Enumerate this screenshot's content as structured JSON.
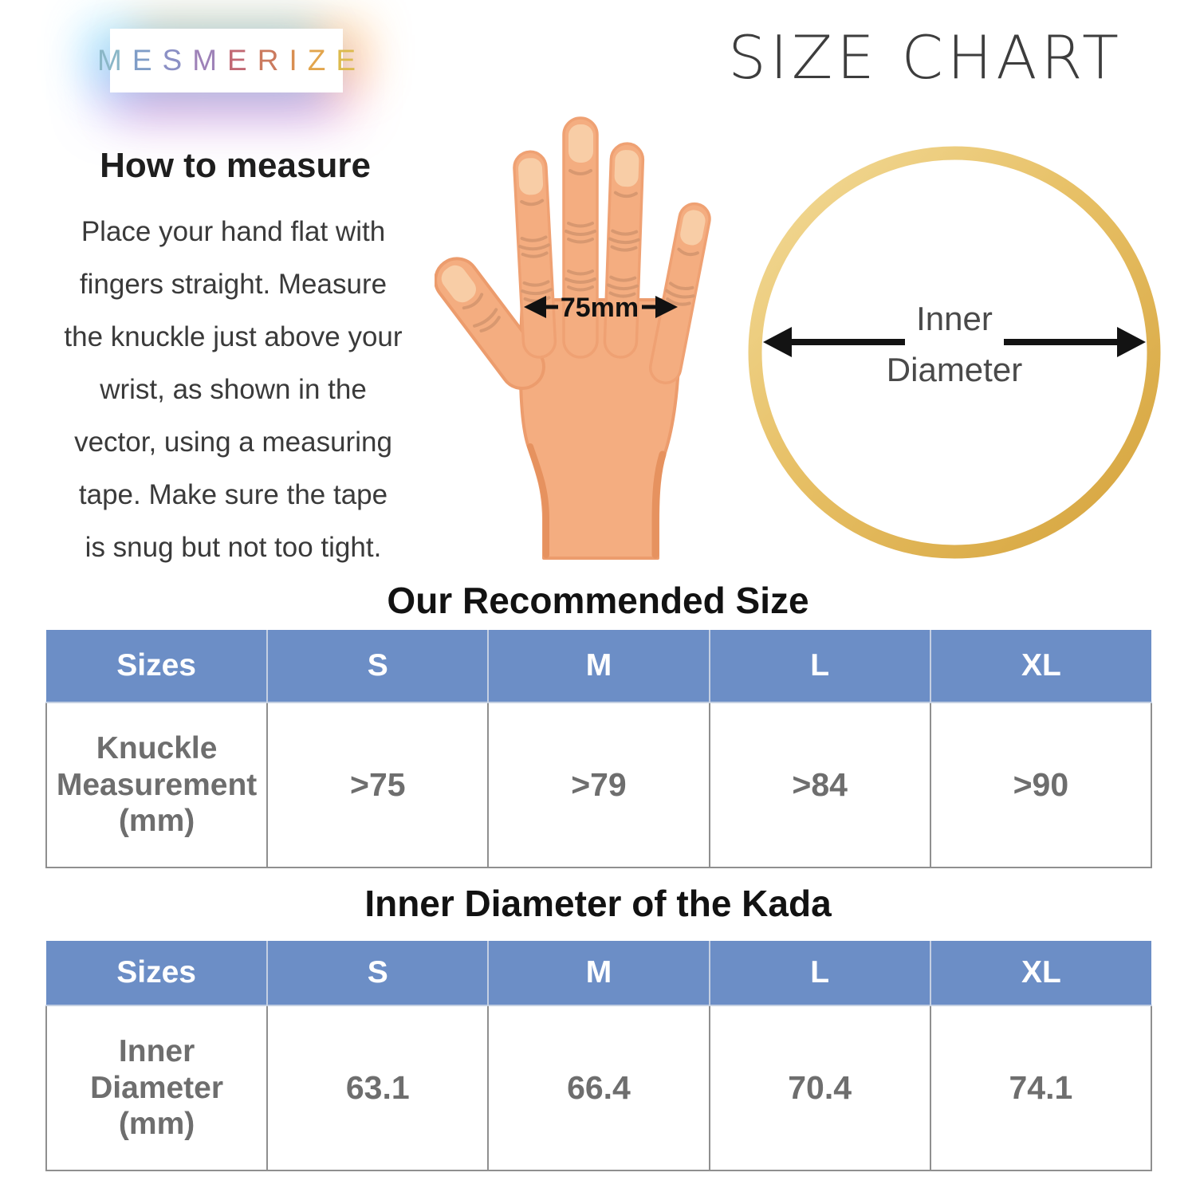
{
  "brand": {
    "name": "MESMERIZE",
    "letter_colors": [
      "#8bb7c7",
      "#7f9dc7",
      "#8b90c5",
      "#9e82b8",
      "#c16873",
      "#cb7a5e",
      "#d88e51",
      "#e2a54d",
      "#dcba4e"
    ]
  },
  "title": "SIZE CHART",
  "how_to_measure": {
    "heading": "How to measure",
    "body": "Place your hand flat with\nfingers straight. Measure\nthe knuckle just above your\nwrist, as shown in the\nvector, using a measuring\ntape. Make sure the tape\nis snug but not too tight."
  },
  "hand": {
    "measurement_label": "75mm"
  },
  "bangle": {
    "label_line1": "Inner",
    "label_line2": "Diameter"
  },
  "tables": [
    {
      "title": "Our Recommended Size",
      "headers": [
        "Sizes",
        "S",
        "M",
        "L",
        "XL"
      ],
      "row_label": "Knuckle\nMeasurement\n(mm)",
      "values": [
        ">75",
        ">79",
        ">84",
        ">90"
      ]
    },
    {
      "title": "Inner Diameter of the Kada",
      "headers": [
        "Sizes",
        "S",
        "M",
        "L",
        "XL"
      ],
      "row_label": "Inner\nDiameter\n(mm)",
      "values": [
        "63.1",
        "66.4",
        "70.4",
        "74.1"
      ]
    }
  ],
  "colors": {
    "header_blue": "#6c8ec6",
    "gold": "#ddaf4e",
    "table_text_gray": "#6e6e6e",
    "skin": "#f4ad80",
    "title_gray": "#3d3d3d"
  }
}
